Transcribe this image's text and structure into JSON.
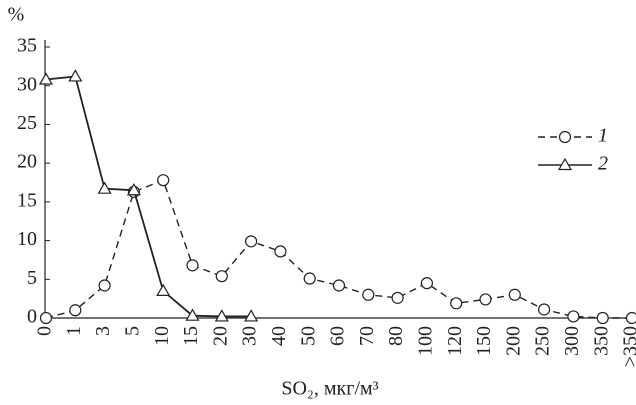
{
  "chart_data": {
    "type": "line",
    "y_unit": "%",
    "x_label": "SO₂,  мкг/м³",
    "categories": [
      "0",
      "1",
      "3",
      "5",
      "10",
      "15",
      "20",
      "30",
      "40",
      "50",
      "60",
      "70",
      "80",
      "100",
      "120",
      "150",
      "200",
      "250",
      "300",
      "350",
      ">350"
    ],
    "series": [
      {
        "name": "1",
        "color": "#222222",
        "dash": true,
        "marker": "circle",
        "values": [
          0,
          1,
          4.2,
          16.3,
          17.8,
          6.8,
          5.4,
          9.9,
          8.6,
          5.1,
          4.2,
          3,
          2.6,
          4.5,
          1.9,
          2.4,
          3,
          1.1,
          0.2,
          0,
          0
        ]
      },
      {
        "name": "2",
        "color": "#222222",
        "dash": false,
        "marker": "triangle",
        "values": [
          30.8,
          31.2,
          16.7,
          16.5,
          3.5,
          0.3,
          0.2,
          0.2,
          null,
          null,
          null,
          null,
          null,
          null,
          null,
          null,
          null,
          null,
          null,
          null,
          null
        ]
      }
    ],
    "ylim": [
      0,
      35
    ],
    "yticks": [
      0,
      5,
      10,
      15,
      20,
      25,
      30,
      35
    ],
    "grid": false
  }
}
